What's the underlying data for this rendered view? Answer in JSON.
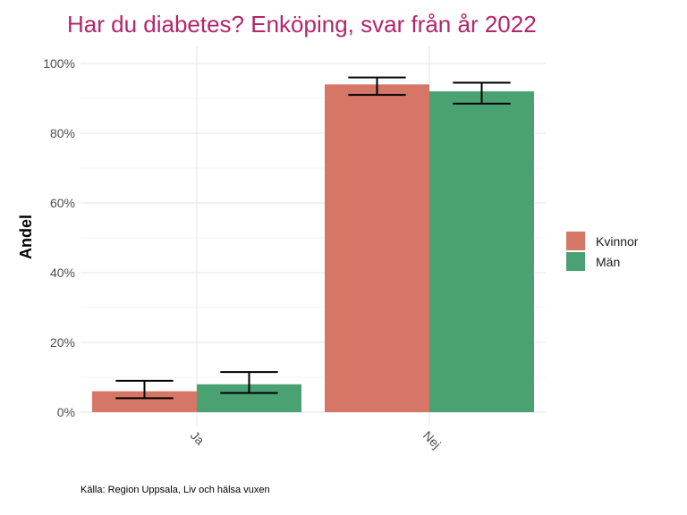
{
  "chart_data": {
    "type": "bar",
    "title": "Har du diabetes? Enköping, svar från år 2022",
    "ylabel": "Andel",
    "xlabel": "",
    "caption": "Källa: Region Uppsala, Liv och hälsa vuxen",
    "categories": [
      "Ja",
      "Nej"
    ],
    "ylim": [
      0,
      100
    ],
    "y_ticks": [
      "0%",
      "20%",
      "40%",
      "60%",
      "80%",
      "100%"
    ],
    "grid": true,
    "legend_position": "right",
    "series": [
      {
        "name": "Kvinnor",
        "color": "#d57667",
        "values": [
          6,
          94
        ],
        "error_low": [
          4,
          91
        ],
        "error_high": [
          9,
          96
        ]
      },
      {
        "name": "Män",
        "color": "#4aa272",
        "values": [
          8,
          92
        ],
        "error_low": [
          5.5,
          88.5
        ],
        "error_high": [
          11.5,
          94.5
        ]
      }
    ]
  }
}
